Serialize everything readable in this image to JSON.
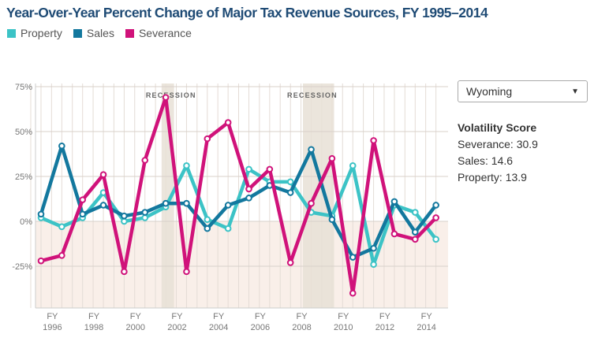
{
  "chart_data": {
    "type": "line",
    "title": "Year-Over-Year Percent Change of Major Tax Revenue Sources, FY 1995–2014",
    "x": [
      1995,
      1996,
      1997,
      1998,
      1999,
      2000,
      2001,
      2002,
      2003,
      2004,
      2005,
      2006,
      2007,
      2008,
      2009,
      2010,
      2011,
      2012,
      2013,
      2014
    ],
    "x_tick_labels": [
      {
        "line1": "FY",
        "line2": "1996",
        "year": 1996
      },
      {
        "line1": "FY",
        "line2": "1998",
        "year": 1998
      },
      {
        "line1": "FY",
        "line2": "2000",
        "year": 2000
      },
      {
        "line1": "FY",
        "line2": "2002",
        "year": 2002
      },
      {
        "line1": "FY",
        "line2": "2004",
        "year": 2004
      },
      {
        "line1": "FY",
        "line2": "2006",
        "year": 2006
      },
      {
        "line1": "FY",
        "line2": "2008",
        "year": 2008
      },
      {
        "line1": "FY",
        "line2": "2010",
        "year": 2010
      },
      {
        "line1": "FY",
        "line2": "2012",
        "year": 2012
      },
      {
        "line1": "FY",
        "line2": "2014",
        "year": 2014
      }
    ],
    "y_ticks": [
      {
        "v": 75,
        "label": "75%"
      },
      {
        "v": 50,
        "label": "50%"
      },
      {
        "v": 25,
        "label": "25%"
      },
      {
        "v": 0,
        "label": "0%"
      },
      {
        "v": -25,
        "label": "-25%"
      }
    ],
    "ylim": [
      -47,
      77
    ],
    "grid": true,
    "legend_placement": "top-left",
    "recessions": [
      {
        "label": "RECESSION",
        "from": 2000.8,
        "to": 2001.4
      },
      {
        "label": "RECESSION",
        "from": 2007.6,
        "to": 2009.1
      }
    ],
    "series": [
      {
        "name": "Property",
        "color": "#3cc3c6",
        "values": [
          2,
          -3,
          2,
          16,
          0,
          2,
          8,
          31,
          1,
          -4,
          29,
          22,
          22,
          5,
          3,
          31,
          -24,
          9,
          5,
          -10
        ]
      },
      {
        "name": "Sales",
        "color": "#13789e",
        "values": [
          4,
          42,
          4,
          9,
          3,
          5,
          10,
          10,
          -4,
          9,
          13,
          20,
          16,
          40,
          1,
          -20,
          -15,
          11,
          -6,
          9
        ]
      },
      {
        "name": "Severance",
        "color": "#d0127a",
        "values": [
          -22,
          -19,
          12,
          26,
          -28,
          34,
          69,
          -28,
          46,
          55,
          18,
          29,
          -23,
          10,
          35,
          -40,
          45,
          -7,
          -10,
          2
        ]
      }
    ]
  },
  "state_select": {
    "value": "Wyoming",
    "arrow": "▼"
  },
  "volatility": {
    "title": "Volatility Score",
    "items": [
      "Severance: 30.9",
      "Sales: 14.6",
      "Property: 13.9"
    ]
  }
}
